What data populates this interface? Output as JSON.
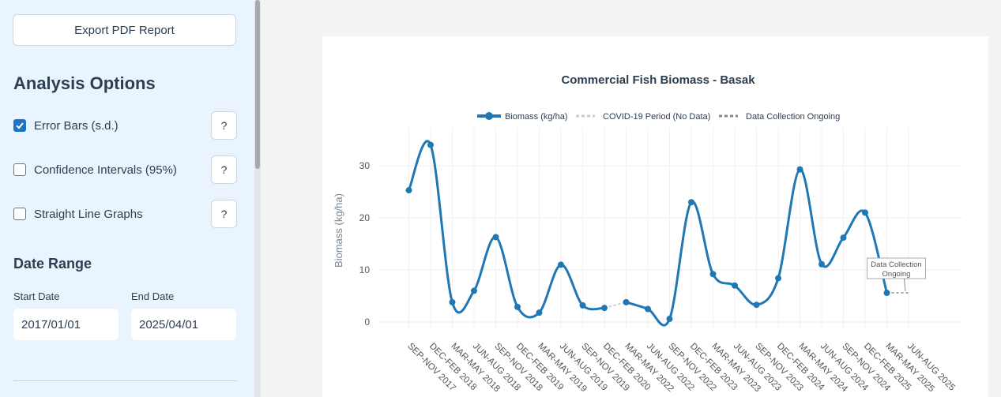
{
  "sidebar": {
    "export_label": "Export PDF Report",
    "analysis_heading": "Analysis Options",
    "options": [
      {
        "label": "Error Bars (s.d.)",
        "checked": true,
        "help": "?"
      },
      {
        "label": "Confidence Intervals (95%)",
        "checked": false,
        "help": "?"
      },
      {
        "label": "Straight Line Graphs",
        "checked": false,
        "help": "?"
      }
    ],
    "date_heading": "Date Range",
    "start_label": "Start Date",
    "end_label": "End Date",
    "start_value": "2017/01/01",
    "end_value": "2025/04/01"
  },
  "chart_data": {
    "type": "line",
    "title": "Commercial Fish Biomass - Basak",
    "ylabel": "Biomass (kg/ha)",
    "xlabel": "",
    "ylim": [
      -1,
      35
    ],
    "yticks": [
      0,
      10,
      20,
      30
    ],
    "grid": true,
    "legend_position": "top-center",
    "legend": [
      "Biomass (kg/ha)",
      "COVID-19 Period (No Data)",
      "Data Collection Ongoing"
    ],
    "categories": [
      "SEP-NOV 2017",
      "DEC-FEB 2018",
      "MAR-MAY 2018",
      "JUN-AUG 2018",
      "SEP-NOV 2018",
      "DEC-FEB 2019",
      "MAR-MAY 2019",
      "JUN-AUG 2019",
      "SEP-NOV 2019",
      "DEC-FEB 2020",
      "MAR-MAY 2022",
      "JUN-AUG 2022",
      "SEP-NOV 2022",
      "DEC-FEB 2023",
      "MAR-MAY 2023",
      "JUN-AUG 2023",
      "SEP-NOV 2023",
      "DEC-FEB 2024",
      "MAR-MAY 2024",
      "JUN-AUG 2024",
      "SEP-NOV 2024",
      "DEC-FEB 2025",
      "MAR-MAY 2025",
      "JUN-AUG 2025"
    ],
    "series": [
      {
        "name": "Biomass (kg/ha)",
        "color": "#1f77b4",
        "values": [
          25.3,
          34.0,
          3.8,
          6.0,
          16.3,
          2.9,
          1.8,
          11.0,
          3.2,
          2.7,
          3.8,
          2.5,
          0.6,
          23.0,
          9.2,
          7.0,
          3.3,
          8.4,
          29.3,
          11.1,
          16.2,
          21.0,
          5.6,
          null
        ]
      },
      {
        "name": "COVID-19 Period (No Data)",
        "color": "#cccccc",
        "from_index": 9,
        "to_index": 10
      },
      {
        "name": "Data Collection Ongoing",
        "color": "#888888",
        "from_index": 22,
        "to_index": 23,
        "value": 5.6
      }
    ],
    "annotation": "Data Collection Ongoing"
  }
}
